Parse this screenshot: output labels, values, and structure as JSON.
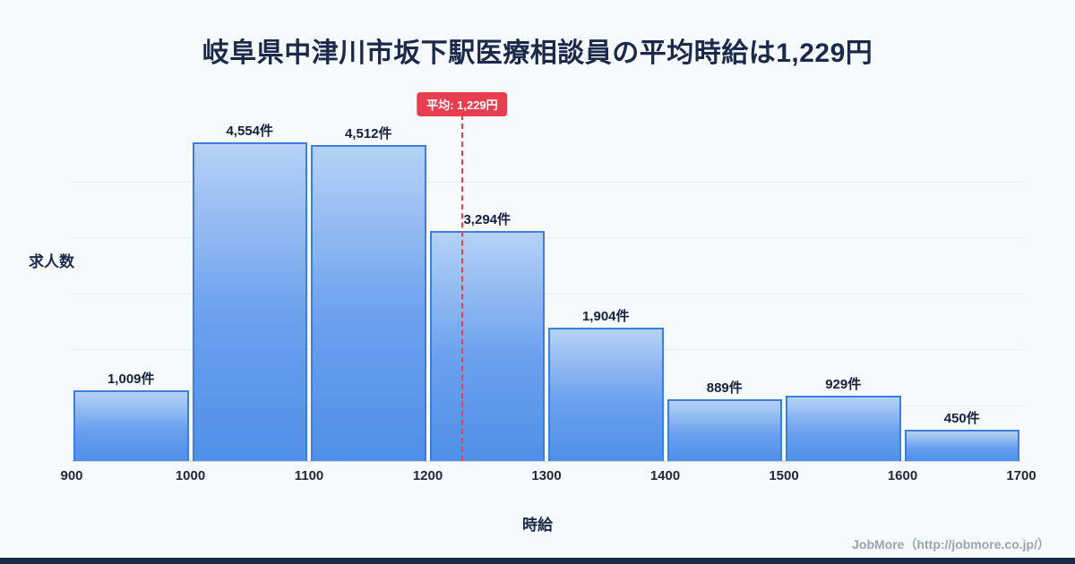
{
  "title": "岐阜県中津川市坂下駅医療相談員の平均時給は1,229円",
  "chart_data": {
    "type": "bar",
    "title": "岐阜県中津川市坂下駅医療相談員の平均時給は1,229円",
    "categories": [
      "900-1000",
      "1000-1100",
      "1100-1200",
      "1200-1300",
      "1300-1400",
      "1400-1500",
      "1500-1600",
      "1600-1700"
    ],
    "values": [
      1009,
      4554,
      4512,
      3294,
      1904,
      889,
      929,
      450
    ],
    "value_labels": [
      "1,009件",
      "4,554件",
      "4,512件",
      "3,294件",
      "1,904件",
      "889件",
      "929件",
      "450件"
    ],
    "bins": [
      900,
      1000,
      1100,
      1200,
      1300,
      1400,
      1500,
      1600,
      1700
    ],
    "x_ticks": [
      "900",
      "1000",
      "1100",
      "1200",
      "1300",
      "1400",
      "1500",
      "1600",
      "1700"
    ],
    "xlabel": "時給",
    "ylabel": "求人数",
    "ylim": [
      0,
      4800
    ],
    "grid": "horizontal",
    "average": 1229,
    "average_label": "平均: 1,229円",
    "colors": {
      "bar_fill_top": "#b5d2f5",
      "bar_fill_bottom": "#4f90e8",
      "bar_border": "#3c7edb",
      "average_line": "#e83e4f",
      "title_text": "#1b2a4a",
      "background": "#f7fafd"
    }
  },
  "footer": {
    "credit": "JobMore（http://jobmore.co.jp/）"
  }
}
